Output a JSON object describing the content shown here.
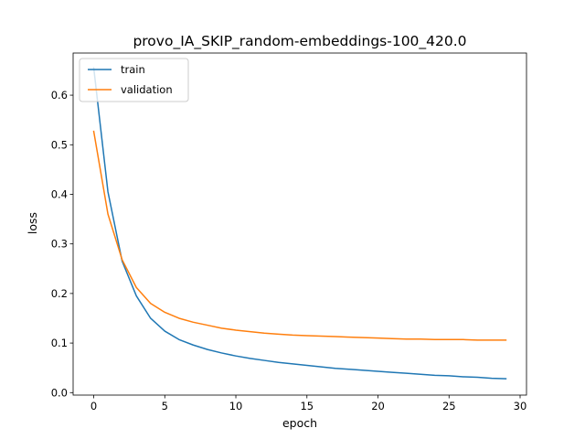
{
  "chart_data": {
    "type": "line",
    "title": "provo_IA_SKIP_random-embeddings-100_420.0",
    "xlabel": "epoch",
    "ylabel": "loss",
    "xlim": [
      -1.45,
      30.45
    ],
    "ylim": [
      -0.005,
      0.685
    ],
    "xticks": [
      0,
      5,
      10,
      15,
      20,
      25,
      30
    ],
    "yticks": [
      0.0,
      0.1,
      0.2,
      0.3,
      0.4,
      0.5,
      0.6
    ],
    "grid": false,
    "legend_position": "top-left",
    "x": [
      0,
      1,
      2,
      3,
      4,
      5,
      6,
      7,
      8,
      9,
      10,
      11,
      12,
      13,
      14,
      15,
      16,
      17,
      18,
      19,
      20,
      21,
      22,
      23,
      24,
      25,
      26,
      27,
      28,
      29
    ],
    "series": [
      {
        "name": "train",
        "color": "#1f77b4",
        "values": [
          0.655,
          0.405,
          0.265,
          0.195,
          0.15,
          0.124,
          0.107,
          0.096,
          0.087,
          0.08,
          0.074,
          0.069,
          0.065,
          0.061,
          0.058,
          0.055,
          0.052,
          0.049,
          0.047,
          0.045,
          0.043,
          0.041,
          0.039,
          0.037,
          0.035,
          0.034,
          0.032,
          0.031,
          0.029,
          0.028
        ]
      },
      {
        "name": "validation",
        "color": "#ff7f0e",
        "values": [
          0.527,
          0.36,
          0.268,
          0.212,
          0.18,
          0.162,
          0.15,
          0.142,
          0.136,
          0.13,
          0.126,
          0.123,
          0.12,
          0.118,
          0.116,
          0.115,
          0.114,
          0.113,
          0.112,
          0.111,
          0.11,
          0.109,
          0.108,
          0.108,
          0.107,
          0.107,
          0.107,
          0.106,
          0.106,
          0.106
        ]
      }
    ]
  }
}
